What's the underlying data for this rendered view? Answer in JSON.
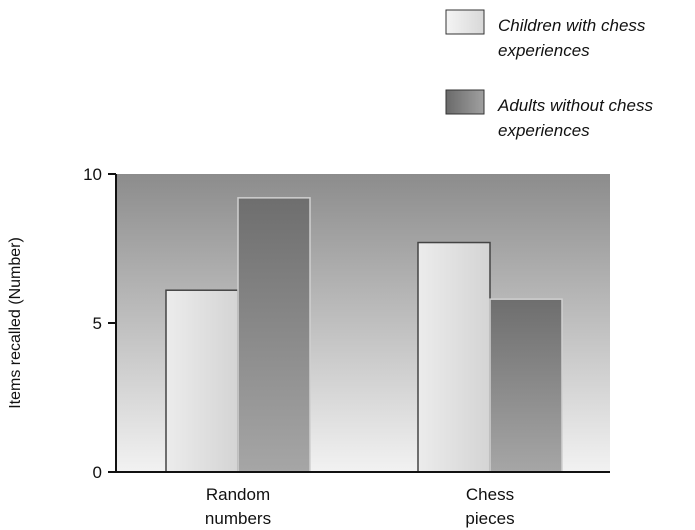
{
  "chart_data": {
    "type": "bar",
    "title": "",
    "xlabel": "",
    "ylabel": "Items recalled (Number)",
    "ylim": [
      0,
      10
    ],
    "yticks": [
      0,
      5,
      10
    ],
    "categories": [
      [
        "Random",
        "numbers"
      ],
      [
        "Chess",
        "pieces"
      ]
    ],
    "series": [
      {
        "name": [
          "Children with chess",
          "experiences"
        ],
        "values": [
          6.1,
          7.7
        ],
        "color": "#e6e6e6"
      },
      {
        "name": [
          "Adults without chess",
          "experiences"
        ],
        "values": [
          9.2,
          5.8
        ],
        "color": "#7a7a7a"
      }
    ],
    "grid": false,
    "legend": "top-right"
  }
}
